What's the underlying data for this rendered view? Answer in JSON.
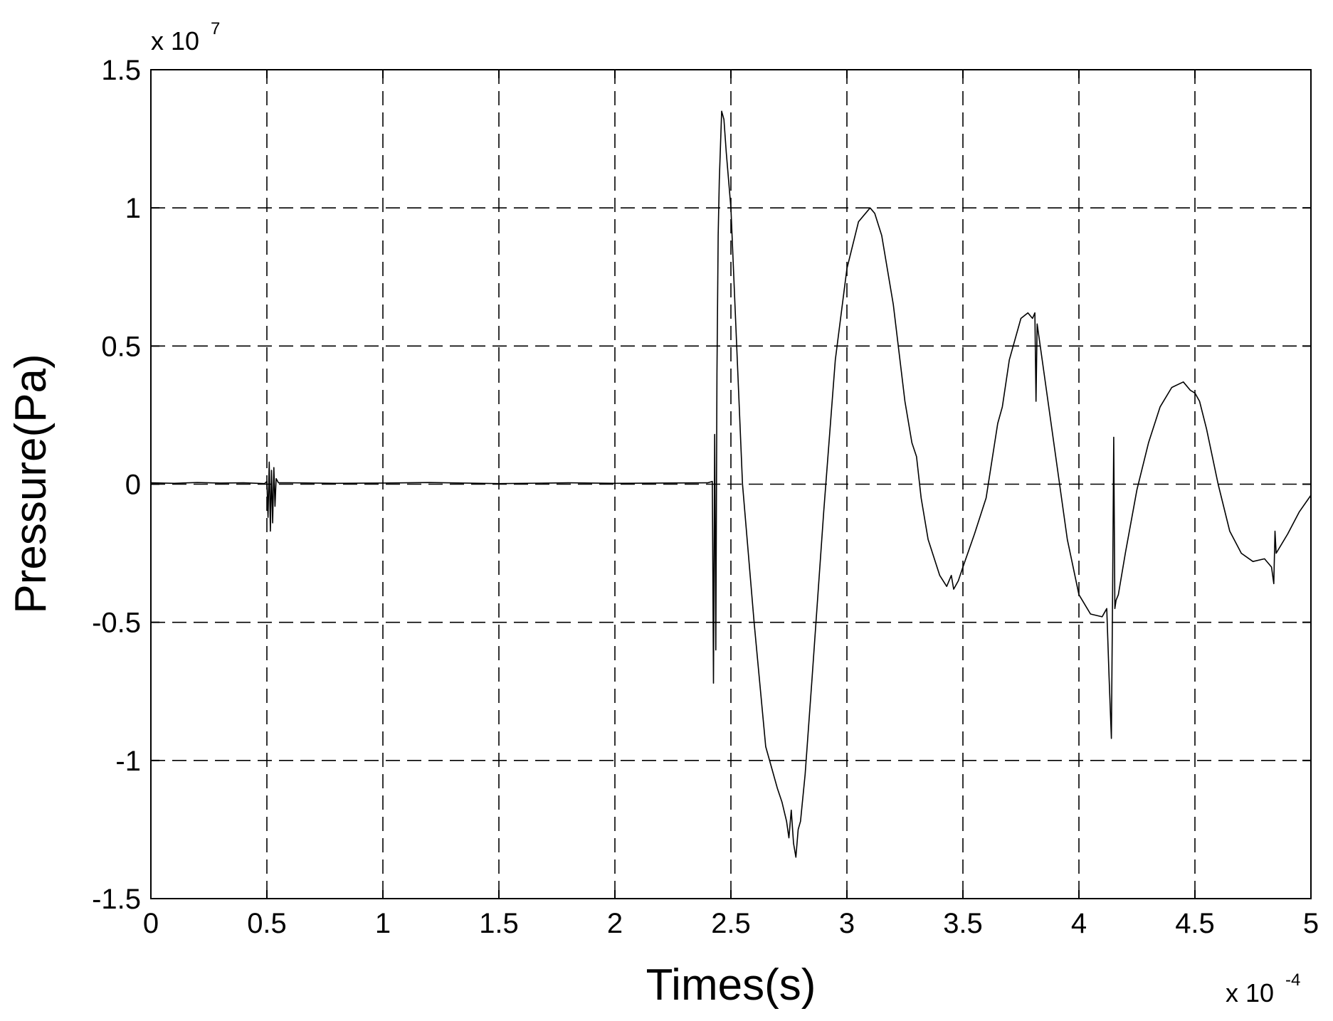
{
  "chart_data": {
    "type": "line",
    "title": "",
    "xlabel": "Times(s)",
    "ylabel": "Pressure(Pa)",
    "x_multiplier": {
      "base": "x 10",
      "exponent": "-4"
    },
    "y_multiplier": {
      "base": "x 10",
      "exponent": "7"
    },
    "xlim": [
      0,
      5
    ],
    "ylim": [
      -1.5,
      1.5
    ],
    "x_ticks": [
      0,
      0.5,
      1,
      1.5,
      2,
      2.5,
      3,
      3.5,
      4,
      4.5,
      5
    ],
    "x_tick_labels": [
      "0",
      "0.5",
      "1",
      "1.5",
      "2",
      "2.5",
      "3",
      "3.5",
      "4",
      "4.5",
      "5"
    ],
    "y_ticks": [
      -1.5,
      -1,
      -0.5,
      0,
      0.5,
      1,
      1.5
    ],
    "y_tick_labels": [
      "-1.5",
      "-1",
      "-0.5",
      "0",
      "0.5",
      "1",
      "1.5"
    ],
    "grid": true,
    "line_color": "#000000",
    "series": [
      {
        "x": [
          0,
          0.1,
          0.2,
          0.3,
          0.4,
          0.49,
          0.5,
          0.505,
          0.51,
          0.515,
          0.52,
          0.525,
          0.53,
          0.535,
          0.54,
          0.55,
          0.6,
          0.8,
          1.0,
          1.2,
          1.5,
          1.8,
          2.0,
          2.2,
          2.4,
          2.42,
          2.425,
          2.43,
          2.435,
          2.44,
          2.445,
          2.45,
          2.46,
          2.47,
          2.48,
          2.5,
          2.52,
          2.55,
          2.6,
          2.65,
          2.7,
          2.72,
          2.74,
          2.75,
          2.76,
          2.77,
          2.78,
          2.79,
          2.8,
          2.82,
          2.85,
          2.9,
          2.95,
          3.0,
          3.05,
          3.1,
          3.12,
          3.15,
          3.2,
          3.25,
          3.28,
          3.3,
          3.32,
          3.35,
          3.4,
          3.43,
          3.45,
          3.46,
          3.48,
          3.5,
          3.55,
          3.6,
          3.65,
          3.67,
          3.7,
          3.75,
          3.78,
          3.8,
          3.81,
          3.815,
          3.82,
          3.85,
          3.9,
          3.95,
          4.0,
          4.05,
          4.1,
          4.12,
          4.13,
          4.14,
          4.145,
          4.15,
          4.155,
          4.16,
          4.17,
          4.2,
          4.25,
          4.3,
          4.35,
          4.4,
          4.45,
          4.48,
          4.5,
          4.52,
          4.55,
          4.6,
          4.65,
          4.7,
          4.75,
          4.8,
          4.83,
          4.84,
          4.845,
          4.85,
          4.9,
          4.95,
          5.0
        ],
        "y": [
          0.005,
          0.003,
          0.006,
          0.004,
          0.005,
          0.002,
          0.01,
          -0.12,
          0.08,
          -0.17,
          0.05,
          -0.14,
          0.06,
          -0.08,
          0.02,
          0.005,
          0.005,
          0.003,
          0.004,
          0.006,
          0.002,
          0.005,
          0.003,
          0.004,
          0.005,
          0.01,
          -0.72,
          0.18,
          -0.6,
          0.4,
          0.9,
          1.1,
          1.35,
          1.32,
          1.2,
          1.0,
          0.6,
          0.0,
          -0.5,
          -0.95,
          -1.1,
          -1.15,
          -1.22,
          -1.28,
          -1.18,
          -1.3,
          -1.35,
          -1.25,
          -1.22,
          -1.05,
          -0.7,
          -0.1,
          0.45,
          0.78,
          0.95,
          1.0,
          0.98,
          0.9,
          0.65,
          0.3,
          0.15,
          0.1,
          -0.05,
          -0.2,
          -0.33,
          -0.37,
          -0.33,
          -0.38,
          -0.35,
          -0.3,
          -0.18,
          -0.05,
          0.22,
          0.28,
          0.45,
          0.6,
          0.62,
          0.6,
          0.62,
          0.3,
          0.58,
          0.4,
          0.1,
          -0.2,
          -0.4,
          -0.47,
          -0.48,
          -0.45,
          -0.7,
          -0.92,
          -0.4,
          0.17,
          -0.45,
          -0.42,
          -0.4,
          -0.25,
          -0.02,
          0.15,
          0.28,
          0.35,
          0.37,
          0.34,
          0.33,
          0.3,
          0.2,
          0.0,
          -0.17,
          -0.25,
          -0.28,
          -0.27,
          -0.3,
          -0.36,
          -0.17,
          -0.25,
          -0.18,
          -0.1,
          -0.04
        ]
      }
    ]
  }
}
